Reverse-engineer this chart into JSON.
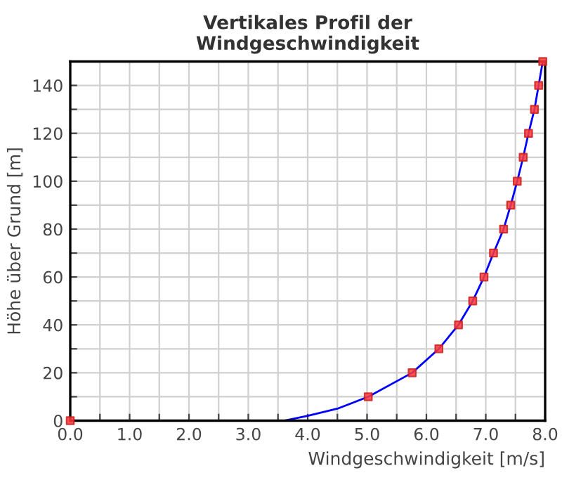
{
  "chart_data": {
    "type": "scatter",
    "title": "Vertikales Profil der\nWindgeschwindigkeit",
    "xlabel": "Windgeschwindigkeit [m/s]",
    "ylabel": "Höhe über Grund [m]",
    "xlim": [
      0,
      8
    ],
    "ylim": [
      0,
      150
    ],
    "xticks": [
      {
        "value": 0,
        "label": "0.0"
      },
      {
        "value": 0.5,
        "label": null
      },
      {
        "value": 1,
        "label": "1.0"
      },
      {
        "value": 1.5,
        "label": null
      },
      {
        "value": 2,
        "label": "2.0"
      },
      {
        "value": 2.5,
        "label": null
      },
      {
        "value": 3,
        "label": "3.0"
      },
      {
        "value": 3.5,
        "label": null
      },
      {
        "value": 4,
        "label": "4.0"
      },
      {
        "value": 4.5,
        "label": null
      },
      {
        "value": 5,
        "label": "5.0"
      },
      {
        "value": 5.5,
        "label": null
      },
      {
        "value": 6,
        "label": "6.0"
      },
      {
        "value": 6.5,
        "label": null
      },
      {
        "value": 7,
        "label": "7.0"
      },
      {
        "value": 7.5,
        "label": null
      },
      {
        "value": 8,
        "label": "8.0"
      }
    ],
    "yticks": [
      0,
      {
        "value": 10,
        "label": null
      },
      20,
      {
        "value": 30,
        "label": null
      },
      40,
      {
        "value": 50,
        "label": null
      },
      60,
      {
        "value": 70,
        "label": null
      },
      80,
      {
        "value": 90,
        "label": null
      },
      100,
      {
        "value": 110,
        "label": null
      },
      120,
      {
        "value": 130,
        "label": null
      },
      140,
      {
        "value": 150,
        "label": null
      }
    ],
    "grid": true,
    "series": [
      {
        "type": "line",
        "color": "#0000ff",
        "marker": "none",
        "line_style": "solid",
        "x": [
          3.6,
          4.0,
          4.5,
          5.02,
          5.76,
          6.21,
          6.54,
          6.78,
          6.97,
          7.13,
          7.3,
          7.42,
          7.53,
          7.63,
          7.72,
          7.82,
          7.89,
          7.96
        ],
        "values": [
          0,
          2,
          5,
          10,
          20,
          30,
          40,
          50,
          60,
          70,
          80,
          90,
          100,
          110,
          120,
          130,
          140,
          150
        ]
      },
      {
        "color": "#ff3b3b",
        "marker": "square",
        "x": [
          0,
          5.02,
          5.76,
          6.21,
          6.54,
          6.78,
          6.97,
          7.13,
          7.3,
          7.42,
          7.53,
          7.63,
          7.72,
          7.82,
          7.89,
          7.96
        ],
        "values": [
          0,
          10,
          20,
          30,
          40,
          50,
          60,
          70,
          80,
          90,
          100,
          110,
          120,
          130,
          140,
          150
        ]
      }
    ]
  }
}
